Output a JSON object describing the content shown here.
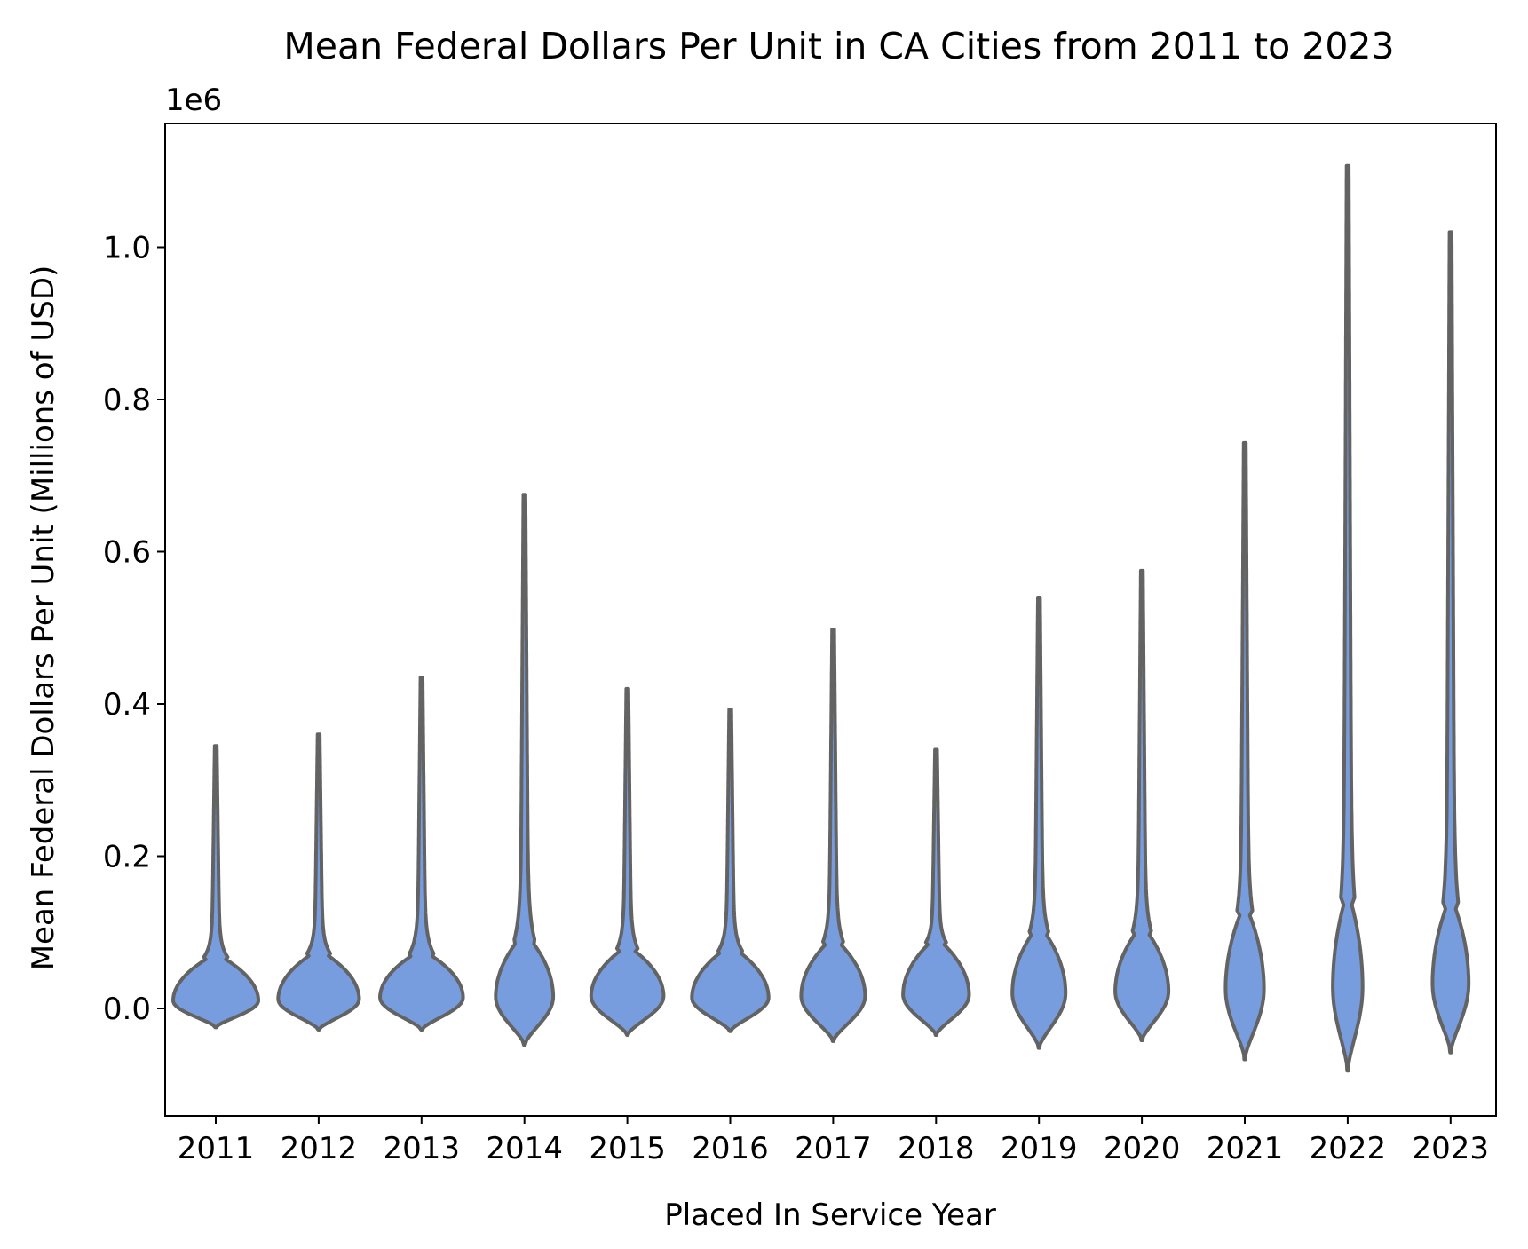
{
  "chart_data": {
    "type": "violin",
    "title": "Mean Federal Dollars Per Unit in CA Cities from 2011 to 2023",
    "xlabel": "Placed In Service Year",
    "ylabel": "Mean Federal Dollars Per Unit (Millions of USD)",
    "y_offset_label": "1e6",
    "y_ticks": [
      0.0,
      0.2,
      0.4,
      0.6,
      0.8,
      1.0
    ],
    "y_tick_labels": [
      "0.0",
      "0.2",
      "0.4",
      "0.6",
      "0.8",
      "1.0"
    ],
    "ylim": [
      -0.14,
      1.17
    ],
    "categories": [
      "2011",
      "2012",
      "2013",
      "2014",
      "2015",
      "2016",
      "2017",
      "2018",
      "2019",
      "2020",
      "2021",
      "2022",
      "2023"
    ],
    "fill_color": "#779ddf",
    "edge_color": "#636363",
    "grid": false,
    "legend": "none",
    "violins": [
      {
        "year": "2011",
        "min": -0.025,
        "max": 0.345,
        "mode": 0.01,
        "body_top": 0.065,
        "rel_width": 0.4
      },
      {
        "year": "2012",
        "min": -0.028,
        "max": 0.36,
        "mode": 0.012,
        "body_top": 0.07,
        "rel_width": 0.38
      },
      {
        "year": "2013",
        "min": -0.028,
        "max": 0.435,
        "mode": 0.014,
        "body_top": 0.07,
        "rel_width": 0.39
      },
      {
        "year": "2014",
        "min": -0.048,
        "max": 0.675,
        "mode": 0.015,
        "body_top": 0.09,
        "rel_width": 0.27
      },
      {
        "year": "2015",
        "min": -0.035,
        "max": 0.42,
        "mode": 0.016,
        "body_top": 0.075,
        "rel_width": 0.34
      },
      {
        "year": "2016",
        "min": -0.03,
        "max": 0.393,
        "mode": 0.014,
        "body_top": 0.075,
        "rel_width": 0.36
      },
      {
        "year": "2017",
        "min": -0.043,
        "max": 0.498,
        "mode": 0.016,
        "body_top": 0.085,
        "rel_width": 0.3
      },
      {
        "year": "2018",
        "min": -0.035,
        "max": 0.34,
        "mode": 0.018,
        "body_top": 0.085,
        "rel_width": 0.31
      },
      {
        "year": "2019",
        "min": -0.052,
        "max": 0.54,
        "mode": 0.02,
        "body_top": 0.1,
        "rel_width": 0.25
      },
      {
        "year": "2020",
        "min": -0.042,
        "max": 0.575,
        "mode": 0.022,
        "body_top": 0.1,
        "rel_width": 0.25
      },
      {
        "year": "2021",
        "min": -0.067,
        "max": 0.743,
        "mode": 0.025,
        "body_top": 0.125,
        "rel_width": 0.18
      },
      {
        "year": "2022",
        "min": -0.082,
        "max": 1.107,
        "mode": 0.028,
        "body_top": 0.14,
        "rel_width": 0.14
      },
      {
        "year": "2023",
        "min": -0.058,
        "max": 1.02,
        "mode": 0.032,
        "body_top": 0.135,
        "rel_width": 0.17
      }
    ]
  }
}
